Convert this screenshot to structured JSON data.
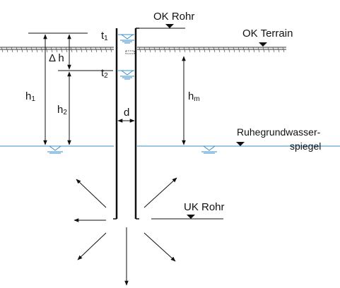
{
  "labels": {
    "ok_rohr": "OK Rohr",
    "ok_terrain": "OK Terrain",
    "t1_base": "t",
    "t1_sub": "1",
    "t2_base": "t",
    "t2_sub": "2",
    "delta_h": "Δ h",
    "h1_base": "h",
    "h1_sub": "1",
    "h2_base": "h",
    "h2_sub": "2",
    "hm_base": "h",
    "hm_sub": "m",
    "d": "d",
    "ruhegrundwasser_line1": "Ruhegrundwasser-",
    "ruhegrundwasser_line2": "spiegel",
    "uk_rohr": "UK Rohr"
  },
  "colors": {
    "line": "#111111",
    "water": "#3a8fc9",
    "terrain": "#333333"
  }
}
